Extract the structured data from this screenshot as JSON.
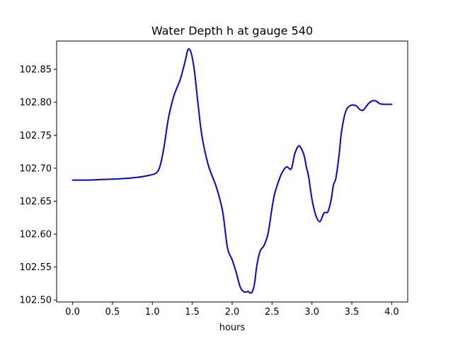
{
  "figure": {
    "title": "Water Depth h at gauge 540"
  },
  "chart_data": {
    "type": "line",
    "title": "Water Depth h at gauge 540",
    "xlabel": "hours",
    "ylabel": "",
    "xlim": [
      -0.2,
      4.2
    ],
    "ylim": [
      102.497,
      102.893
    ],
    "x_ticks": [
      0.0,
      0.5,
      1.0,
      1.5,
      2.0,
      2.5,
      3.0,
      3.5,
      4.0
    ],
    "x_tick_labels": [
      "0.0",
      "0.5",
      "1.0",
      "1.5",
      "2.0",
      "2.5",
      "3.0",
      "3.5",
      "4.0"
    ],
    "y_ticks": [
      102.5,
      102.55,
      102.6,
      102.65,
      102.7,
      102.75,
      102.8,
      102.85
    ],
    "y_tick_labels": [
      "102.50",
      "102.55",
      "102.60",
      "102.65",
      "102.70",
      "102.75",
      "102.80",
      "102.85"
    ],
    "grid": false,
    "legend": false,
    "series": [
      {
        "color": "#0000ff",
        "x": [
          0.0,
          0.2,
          0.4,
          0.6,
          0.8,
          0.95,
          1.05,
          1.1,
          1.15,
          1.2,
          1.27,
          1.35,
          1.41,
          1.44,
          1.46,
          1.48,
          1.5,
          1.53,
          1.57,
          1.62,
          1.7,
          1.8,
          1.88,
          1.94,
          2.0,
          2.05,
          2.1,
          2.14,
          2.17,
          2.2,
          2.22,
          2.25,
          2.28,
          2.31,
          2.35,
          2.4,
          2.45,
          2.5,
          2.53,
          2.57,
          2.62,
          2.68,
          2.74,
          2.78,
          2.8,
          2.82,
          2.85,
          2.9,
          2.93,
          2.96,
          3.0,
          3.05,
          3.1,
          3.15,
          3.2,
          3.24,
          3.27,
          3.3,
          3.34,
          3.37,
          3.42,
          3.48,
          3.55,
          3.6,
          3.64,
          3.67,
          3.7,
          3.75,
          3.8,
          3.85,
          3.9,
          3.95,
          3.98,
          4.0
        ],
        "y": [
          102.682,
          102.682,
          102.683,
          102.684,
          102.686,
          102.689,
          102.693,
          102.705,
          102.735,
          102.775,
          102.81,
          102.835,
          102.862,
          102.878,
          102.881,
          102.877,
          102.868,
          102.845,
          102.8,
          102.75,
          102.705,
          102.672,
          102.635,
          102.58,
          102.561,
          102.542,
          102.52,
          102.513,
          102.512,
          102.513,
          102.511,
          102.512,
          102.525,
          102.553,
          102.574,
          102.583,
          102.601,
          102.64,
          102.66,
          102.676,
          102.692,
          102.702,
          102.699,
          102.72,
          102.727,
          102.732,
          102.733,
          102.72,
          102.702,
          102.686,
          102.653,
          102.628,
          102.619,
          102.632,
          102.634,
          102.652,
          102.675,
          102.685,
          102.72,
          102.755,
          102.785,
          102.795,
          102.795,
          102.789,
          102.788,
          102.792,
          102.797,
          102.802,
          102.802,
          102.798,
          102.797,
          102.797,
          102.797,
          102.797
        ]
      }
    ]
  }
}
